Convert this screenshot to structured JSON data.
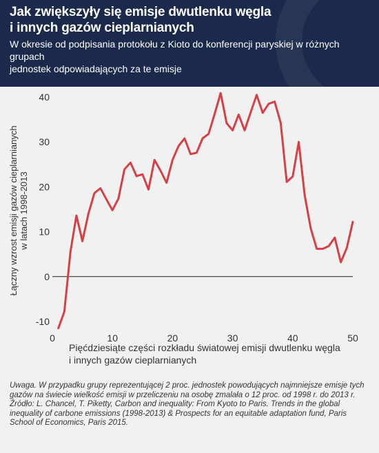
{
  "header": {
    "title_line1": "Jak zwiększyły się emisje dwutlenku węgla",
    "title_line2": "i innych gazów cieplarnianych",
    "subtitle_line1": "W okresie od podpisania protokołu z Kioto do konferencji paryskiej w różnych grupach",
    "subtitle_line2": "jednostek odpowiadających za te emisje"
  },
  "footer": {
    "note": "Uwaga. W przypadku grupy reprezentującej 2 proc. jednostek powodujących najmniejsze emisje tych gazów na świecie wielkość emisji w przeliczeniu na osobę zmalała o 12 proc. od 1998 r. do 2013 r.",
    "source": "Źródło: L. Chancel, T. Piketty, Carbon and inequality: From Kyoto to Paris. Trends in the global inequality of carbone emissions (1998-2013) & Prospects for an equitable adaptation fund, Paris School of Economics, Paris 2015."
  },
  "chart_data": {
    "type": "line",
    "xlabel_line1": "Pięćdziesiąte części rozkładu światowej emisji dwutlenku węgla",
    "xlabel_line2": "i innych gazów cieplarnianych",
    "ylabel_line1": "Łączny wzrost emisji gazów cieplarnianych",
    "ylabel_line2": "w latach 1998-2013",
    "xlim": [
      0,
      50
    ],
    "ylim": [
      -12,
      42
    ],
    "xticks": [
      0,
      10,
      20,
      30,
      40,
      50
    ],
    "yticks": [
      -10,
      0,
      10,
      20,
      30,
      40
    ],
    "grid": false,
    "line_color": "#d64045",
    "x": [
      1,
      2,
      3,
      4,
      5,
      6,
      7,
      8,
      9,
      10,
      11,
      12,
      13,
      14,
      15,
      16,
      17,
      18,
      19,
      20,
      21,
      22,
      23,
      24,
      25,
      26,
      27,
      28,
      29,
      30,
      31,
      32,
      33,
      34,
      35,
      36,
      37,
      38,
      39,
      40,
      41,
      42,
      43,
      44,
      45,
      46,
      47,
      48,
      49,
      50
    ],
    "y": [
      -11.5,
      -7.8,
      5.5,
      13.6,
      7.9,
      14.0,
      18.6,
      19.7,
      17.2,
      14.8,
      17.4,
      23.9,
      25.4,
      22.4,
      22.8,
      19.4,
      26.0,
      23.6,
      20.9,
      26.0,
      29.1,
      30.8,
      27.3,
      27.6,
      30.8,
      31.8,
      36.2,
      40.9,
      34.2,
      32.6,
      36.1,
      32.6,
      36.6,
      40.5,
      36.5,
      38.5,
      39.0,
      34.2,
      21.1,
      22.3,
      30.0,
      18.1,
      10.7,
      6.2,
      6.2,
      6.8,
      8.7,
      3.2,
      6.4,
      12.2
    ]
  }
}
